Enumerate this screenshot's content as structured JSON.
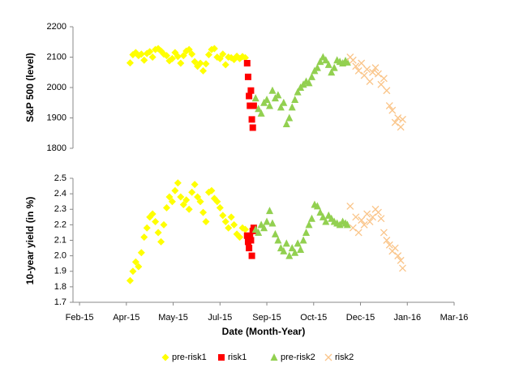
{
  "chart_data": [
    {
      "type": "scatter",
      "y_label": "S&P 500 (level)",
      "xlim": [
        38,
        445
      ],
      "ylim": [
        1800,
        2200
      ],
      "yticks": [
        1800,
        1900,
        2000,
        2100,
        2200
      ],
      "series": [
        {
          "color": "#ffff00",
          "marker": "diamond",
          "x": [
            99,
            102,
            105,
            108,
            111,
            114,
            117,
            120,
            123,
            126,
            129,
            132,
            135,
            138,
            141,
            144,
            147,
            150,
            153,
            156,
            159,
            162,
            165,
            168,
            171,
            174,
            177,
            180,
            183,
            186,
            189,
            192,
            195,
            198,
            201,
            204,
            207,
            210,
            213,
            216,
            219,
            222
          ],
          "values": [
            2081,
            2108,
            2115,
            2105,
            2110,
            2090,
            2112,
            2118,
            2100,
            2125,
            2128,
            2120,
            2110,
            2105,
            2088,
            2095,
            2115,
            2102,
            2080,
            2105,
            2120,
            2125,
            2110,
            2085,
            2070,
            2080,
            2055,
            2078,
            2108,
            2125,
            2128,
            2100,
            2095,
            2110,
            2075,
            2100,
            2098,
            2092,
            2103,
            2095,
            2102,
            2098
          ]
        },
        {
          "color": "#ff0000",
          "marker": "square",
          "x": [
            224,
            225,
            226,
            227,
            228,
            229,
            230,
            231
          ],
          "values": [
            2080,
            2035,
            1972,
            1940,
            1990,
            1895,
            1868,
            1940
          ]
        },
        {
          "color": "#92d050",
          "marker": "triangle",
          "x": [
            233,
            236,
            239,
            242,
            245,
            248,
            251,
            254,
            257,
            260,
            263,
            266,
            269,
            272,
            275,
            278,
            281,
            284,
            287,
            290,
            293,
            296,
            299,
            302,
            305,
            308,
            311,
            314,
            317,
            320,
            323,
            326,
            329,
            331
          ],
          "values": [
            1965,
            1930,
            1915,
            1950,
            1960,
            1940,
            1990,
            1965,
            1975,
            1935,
            1950,
            1880,
            1900,
            1935,
            1960,
            1985,
            2000,
            2010,
            2020,
            2015,
            2035,
            2055,
            2065,
            2085,
            2100,
            2090,
            2075,
            2050,
            2065,
            2090,
            2085,
            2080,
            2088,
            2083
          ]
        },
        {
          "color": "#fac58a",
          "marker": "x",
          "x": [
            334,
            337,
            340,
            343,
            346,
            349,
            352,
            355,
            358,
            361,
            364,
            367,
            370,
            373,
            376,
            379,
            382,
            385,
            388,
            390
          ],
          "values": [
            2100,
            2090,
            2070,
            2055,
            2080,
            2040,
            2060,
            2020,
            2050,
            2065,
            2045,
            2010,
            2030,
            1990,
            1940,
            1925,
            1885,
            1900,
            1870,
            1895
          ]
        }
      ]
    },
    {
      "type": "scatter",
      "y_label": "10-year yield (in %)",
      "x_label": "Date (Month-Year)",
      "xlim": [
        38,
        445
      ],
      "ylim": [
        1.7,
        2.5
      ],
      "yticks": [
        1.7,
        1.8,
        1.9,
        {
          "value": 2,
          "label": "2.0"
        },
        2.1,
        2.2,
        2.3,
        2.4,
        2.5
      ],
      "xticks": [
        {
          "value": 45,
          "label": "Feb-15"
        },
        {
          "value": 95,
          "label": "Apr-15"
        },
        {
          "value": 145,
          "label": "May-15"
        },
        {
          "value": 195,
          "label": "Jul-15"
        },
        {
          "value": 245,
          "label": "Sep-15"
        },
        {
          "value": 295,
          "label": "Oct-15"
        },
        {
          "value": 345,
          "label": "Dec-15"
        },
        {
          "value": 395,
          "label": "Jan-16"
        },
        {
          "value": 445,
          "label": "Mar-16"
        }
      ],
      "series": [
        {
          "name": "pre-risk1",
          "color": "#ffff00",
          "marker": "diamond",
          "x": [
            99,
            102,
            105,
            108,
            111,
            114,
            117,
            120,
            123,
            126,
            129,
            132,
            135,
            138,
            141,
            144,
            147,
            150,
            153,
            156,
            159,
            162,
            165,
            168,
            171,
            174,
            177,
            180,
            183,
            186,
            189,
            192,
            195,
            198,
            201,
            204,
            207,
            210,
            213,
            216,
            219,
            222
          ],
          "values": [
            1.84,
            1.9,
            1.96,
            1.93,
            2.02,
            2.12,
            2.18,
            2.25,
            2.27,
            2.22,
            2.15,
            2.09,
            2.2,
            2.31,
            2.38,
            2.35,
            2.42,
            2.47,
            2.38,
            2.33,
            2.36,
            2.3,
            2.41,
            2.46,
            2.38,
            2.35,
            2.28,
            2.22,
            2.41,
            2.42,
            2.37,
            2.35,
            2.31,
            2.26,
            2.22,
            2.18,
            2.25,
            2.2,
            2.14,
            2.12,
            2.18,
            2.17
          ]
        },
        {
          "name": "risk1",
          "color": "#ff0000",
          "marker": "square",
          "x": [
            224,
            225,
            226,
            227,
            228,
            229,
            230,
            231
          ],
          "values": [
            2.13,
            2.09,
            2.05,
            2.12,
            2.1,
            2.0,
            2.16,
            2.18
          ]
        },
        {
          "name": "pre-risk2",
          "color": "#92d050",
          "marker": "triangle",
          "x": [
            233,
            236,
            239,
            242,
            245,
            248,
            251,
            254,
            257,
            260,
            263,
            266,
            269,
            272,
            275,
            278,
            281,
            284,
            287,
            290,
            293,
            296,
            299,
            302,
            305,
            308,
            311,
            314,
            317,
            320,
            323,
            326,
            329,
            331
          ],
          "values": [
            2.17,
            2.15,
            2.2,
            2.18,
            2.22,
            2.29,
            2.21,
            2.14,
            2.1,
            2.05,
            2.03,
            2.08,
            2.0,
            2.05,
            2.02,
            2.08,
            2.04,
            2.1,
            2.15,
            2.2,
            2.24,
            2.33,
            2.32,
            2.28,
            2.25,
            2.22,
            2.26,
            2.24,
            2.22,
            2.21,
            2.2,
            2.22,
            2.21,
            2.2
          ]
        },
        {
          "name": "risk2",
          "color": "#fac58a",
          "marker": "x",
          "x": [
            334,
            337,
            340,
            343,
            346,
            349,
            352,
            355,
            358,
            361,
            364,
            367,
            370,
            373,
            376,
            379,
            382,
            385,
            388,
            390
          ],
          "values": [
            2.32,
            2.18,
            2.25,
            2.15,
            2.23,
            2.2,
            2.27,
            2.22,
            2.25,
            2.3,
            2.28,
            2.24,
            2.15,
            2.1,
            2.07,
            2.03,
            2.05,
            2.0,
            1.97,
            1.92
          ]
        }
      ]
    }
  ]
}
